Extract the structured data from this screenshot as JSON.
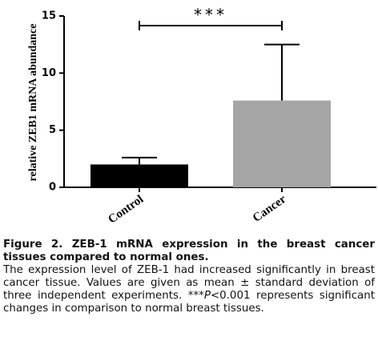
{
  "chart_data": {
    "type": "bar",
    "ylabel": "relative ZEB1 mRNA abundance",
    "categories": [
      "Control",
      "Cancer"
    ],
    "values": [
      2.0,
      7.6
    ],
    "errors": [
      0.6,
      4.9
    ],
    "colors": [
      "#000000",
      "#a6a6a6"
    ],
    "ylim": [
      0,
      15
    ],
    "yticks": [
      0,
      5,
      10,
      15
    ],
    "annotation": "***"
  },
  "caption": {
    "title": "Figure 2. ZEB-1 mRNA expression in the breast cancer tissues compared to normal ones.",
    "text": [
      "The expression level of ZEB-1 had increased significantly in breast cancer tissue. Values are given as mean ± standard deviation of three independent experiments. ***",
      "P",
      "<0.001 represents significant changes in comparison to normal breast tissues."
    ]
  }
}
